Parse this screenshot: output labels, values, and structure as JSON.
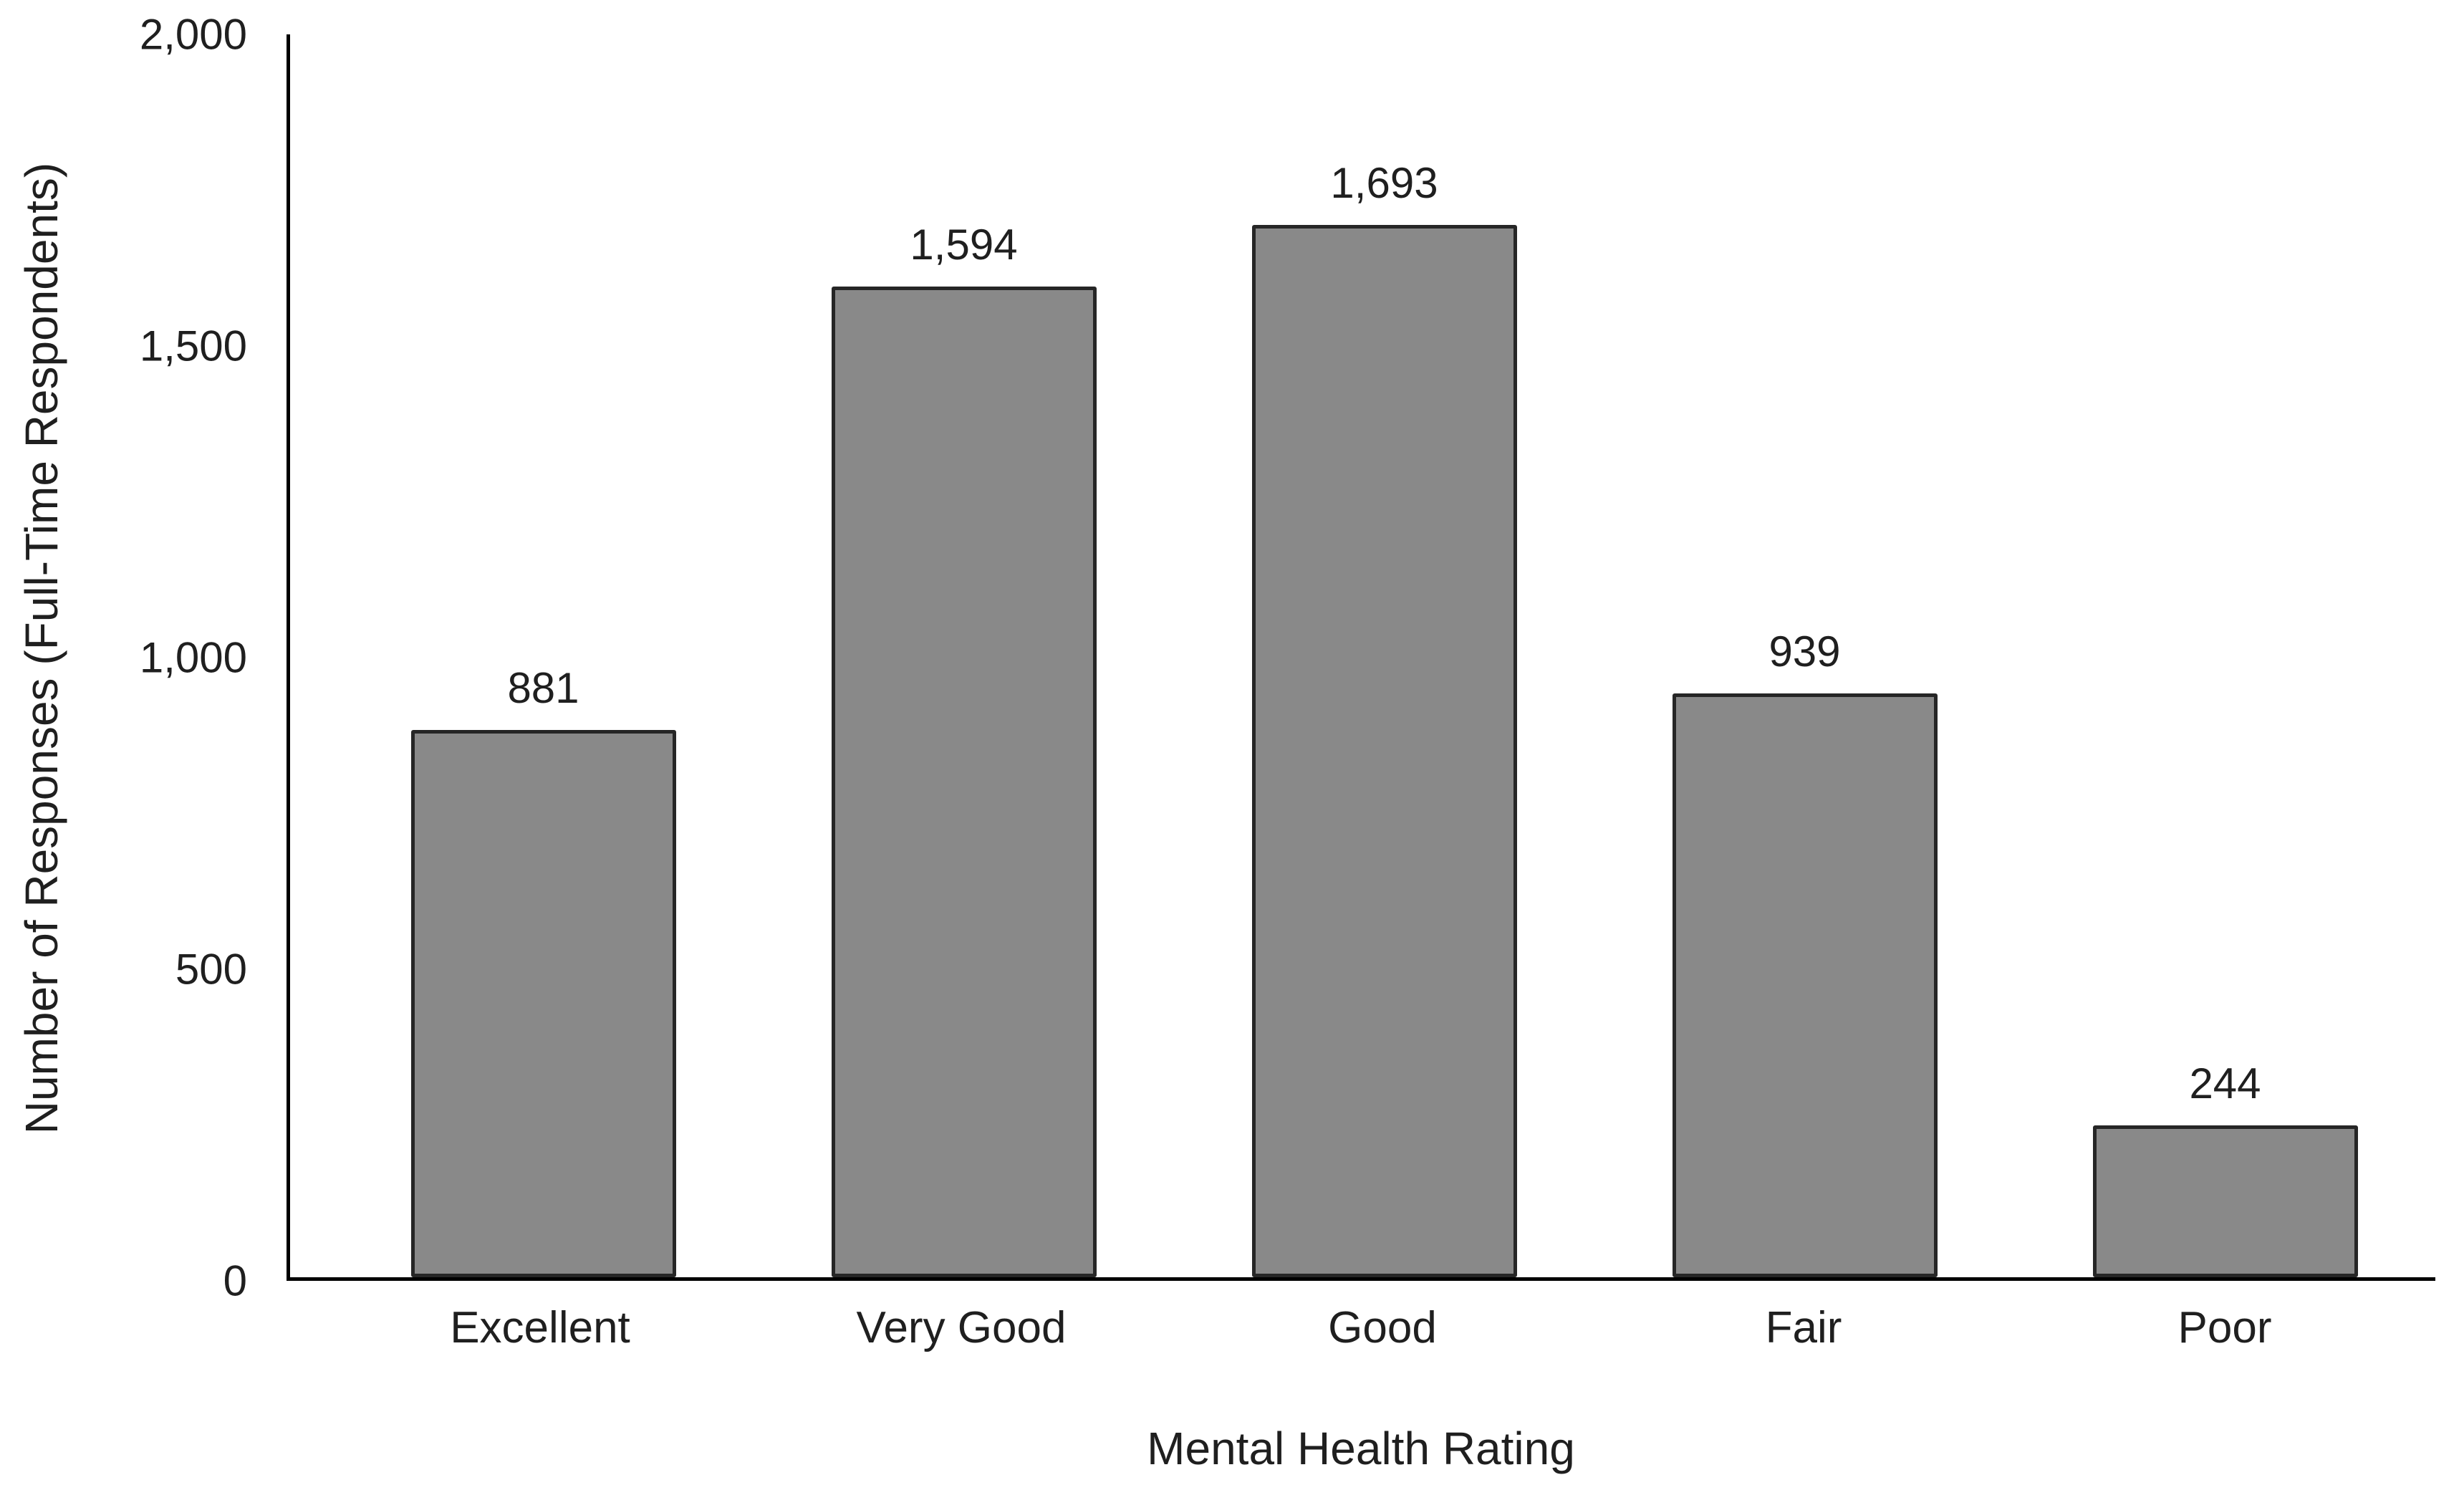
{
  "chart_data": {
    "type": "bar",
    "title": "",
    "categories": [
      "Excellent",
      "Very Good",
      "Good",
      "Fair",
      "Poor"
    ],
    "values": [
      881,
      1594,
      1693,
      939,
      244
    ],
    "value_labels": [
      "881",
      "1,594",
      "1,693",
      "939",
      "244"
    ],
    "xlabel": "Mental Health Rating",
    "ylabel": "Number of Responses (Full-Time Respondents)",
    "ylim": [
      0,
      2000
    ],
    "yticks": [
      0,
      500,
      1000,
      1500,
      2000
    ],
    "ytick_labels": [
      "0",
      "500",
      "1,000",
      "1,500",
      "2,000"
    ],
    "grid": false,
    "legend": "none",
    "bar_fill": "#898989",
    "bar_border": "#262626",
    "axis_color": "#000000",
    "background": "#ffffff"
  }
}
